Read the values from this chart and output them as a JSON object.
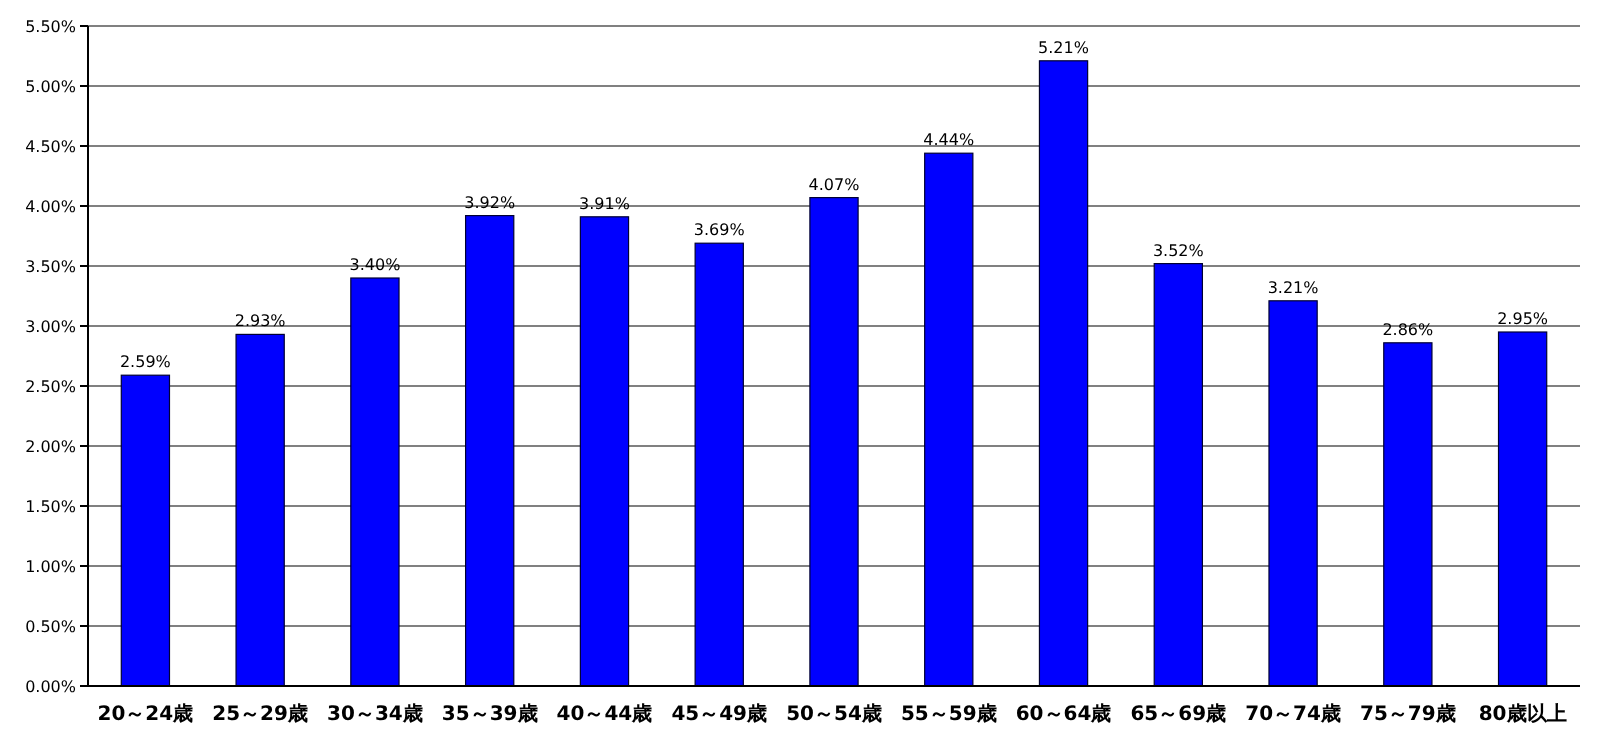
{
  "chart_data": {
    "type": "bar",
    "categories": [
      "20～24歳",
      "25～29歳",
      "30～34歳",
      "35～39歳",
      "40～44歳",
      "45～49歳",
      "50～54歳",
      "55～59歳",
      "60～64歳",
      "65～69歳",
      "70～74歳",
      "75～79歳",
      "80歳以上"
    ],
    "values": [
      2.59,
      2.93,
      3.4,
      3.92,
      3.91,
      3.69,
      4.07,
      4.44,
      5.21,
      3.52,
      3.21,
      2.86,
      2.95
    ],
    "value_labels": [
      "2.59%",
      "2.93%",
      "3.40%",
      "3.92%",
      "3.91%",
      "3.69%",
      "4.07%",
      "4.44%",
      "5.21%",
      "3.52%",
      "3.21%",
      "2.86%",
      "2.95%"
    ],
    "color": "#0000ff",
    "ylim": [
      0,
      5.5
    ],
    "yticks": [
      {
        "value": 0,
        "label": "0.00%"
      },
      {
        "value": 0.5,
        "label": "0.50%"
      },
      {
        "value": 1,
        "label": "1.00%"
      },
      {
        "value": 1.5,
        "label": "1.50%"
      },
      {
        "value": 2,
        "label": "2.00%"
      },
      {
        "value": 2.5,
        "label": "2.50%"
      },
      {
        "value": 3,
        "label": "3.00%"
      },
      {
        "value": 3.5,
        "label": "3.50%"
      },
      {
        "value": 4,
        "label": "4.00%"
      },
      {
        "value": 4.5,
        "label": "4.50%"
      },
      {
        "value": 5,
        "label": "5.00%"
      },
      {
        "value": 5.5,
        "label": "5.50%"
      }
    ],
    "grid": "y"
  }
}
